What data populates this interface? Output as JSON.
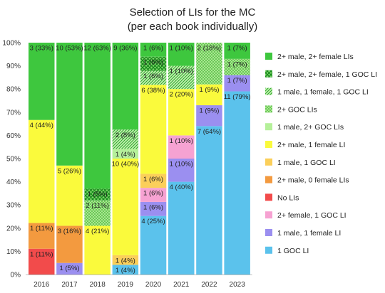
{
  "chart_data": {
    "type": "bar",
    "stacked": true,
    "title": "Selection of LIs for the MC",
    "subtitle": "(per each book individually)",
    "xlabel": "",
    "ylabel": "",
    "ylim": [
      0,
      100
    ],
    "yticks": [
      "0%",
      "10%",
      "20%",
      "30%",
      "40%",
      "50%",
      "60%",
      "70%",
      "80%",
      "90%",
      "100%"
    ],
    "grid": false,
    "legend_position": "right",
    "categories": [
      "2016",
      "2017",
      "2018",
      "2019",
      "2020",
      "2021",
      "2022",
      "2023"
    ],
    "series": [
      {
        "name": "1 GOC LI",
        "color": "#5bc2ec",
        "pattern": "solid",
        "values": [
          0,
          0,
          0,
          4,
          25,
          40,
          64,
          79
        ],
        "labels": [
          "",
          "",
          "",
          "1 (4%)",
          "4 (25%)",
          "4 (40%)",
          "7 (64%)",
          "11 (79%)"
        ]
      },
      {
        "name": "1 male, 1 female LI",
        "color": "#9b8ff0",
        "pattern": "solid",
        "values": [
          0,
          5,
          0,
          0,
          6,
          10,
          9,
          7
        ],
        "labels": [
          "",
          "1 (5%)",
          "",
          "",
          "1 (6%)",
          "1 (10%)",
          "1 (9%)",
          "1 (7%)"
        ]
      },
      {
        "name": "2+ female, 1 GOC LI",
        "color": "#f6a2d2",
        "pattern": "solid",
        "values": [
          0,
          0,
          0,
          0,
          6,
          10,
          0,
          0
        ],
        "labels": [
          "",
          "",
          "",
          "",
          "1 (6%)",
          "1 (10%)",
          "",
          ""
        ]
      },
      {
        "name": "No LIs",
        "color": "#f24b4b",
        "pattern": "solid",
        "values": [
          11,
          0,
          0,
          0,
          0,
          0,
          0,
          0
        ],
        "labels": [
          "1 (11%)",
          "",
          "",
          "",
          "",
          "",
          "",
          ""
        ]
      },
      {
        "name": "2+ male, 0 female LIs",
        "color": "#f39a3f",
        "pattern": "solid",
        "values": [
          11,
          16,
          0,
          0,
          0,
          0,
          0,
          0
        ],
        "labels": [
          "1 (11%)",
          "3 (16%)",
          "",
          "",
          "",
          "",
          "",
          ""
        ]
      },
      {
        "name": "1 male, 1 GOC LI",
        "color": "#fbcf5a",
        "pattern": "solid",
        "values": [
          0,
          0,
          0,
          4,
          6,
          0,
          0,
          0
        ],
        "labels": [
          "",
          "",
          "",
          "1 (4%)",
          "1 (6%)",
          "",
          "",
          ""
        ]
      },
      {
        "name": "2+ male, 1 female LI",
        "color": "#fafa3c",
        "pattern": "solid",
        "values": [
          44,
          26,
          21,
          40,
          38,
          20,
          9,
          0
        ],
        "labels": [
          "4 (44%)",
          "5 (26%)",
          "4 (21%)",
          "10 (40%)",
          "6 (38%)",
          "2 (20%)",
          "1 (9%)",
          ""
        ]
      },
      {
        "name": "1 male, 2+ GOC LIs",
        "color": "#b5f09a",
        "pattern": "solid",
        "values": [
          0,
          0,
          0,
          4,
          0,
          0,
          0,
          0
        ],
        "labels": [
          "",
          "",
          "",
          "1 (4%)",
          "",
          "",
          "",
          ""
        ]
      },
      {
        "name": "2+ GOC LIs",
        "color": "#6cd44e",
        "pattern": "dots",
        "values": [
          0,
          0,
          11,
          0,
          0,
          0,
          18,
          7
        ],
        "labels": [
          "",
          "",
          "2 (11%)",
          "",
          "",
          "",
          "2 (18%)",
          "1 (7%)"
        ]
      },
      {
        "name": "1 male, 1 female, 1 GOC LI",
        "color": "#6cd44e",
        "pattern": "diag",
        "values": [
          0,
          0,
          0,
          8,
          6,
          10,
          0,
          0
        ],
        "labels": [
          "",
          "",
          "",
          "2 (8%)",
          "1 (6%)",
          "1 (10%)",
          "",
          ""
        ]
      },
      {
        "name": "2+ male, 2+ female, 1 GOC LI",
        "color": "#2eb82e",
        "pattern": "cross",
        "values": [
          0,
          0,
          5,
          0,
          6,
          0,
          0,
          0
        ],
        "labels": [
          "",
          "",
          "1 (5%)",
          "",
          "1 (6%)",
          "",
          "",
          ""
        ]
      },
      {
        "name": "2+ male, 2+ female LIs",
        "color": "#3ec73e",
        "pattern": "solid",
        "values": [
          33,
          53,
          63,
          36,
          6,
          10,
          0,
          7
        ],
        "labels": [
          "3 (33%)",
          "10 (53%)",
          "12 (63%)",
          "9 (36%)",
          "1 (6%)",
          "1 (10%)",
          "",
          "1 (7%)"
        ]
      }
    ],
    "legend_order": [
      "2+ male, 2+ female LIs",
      "2+ male, 2+ female, 1 GOC LI",
      "1 male, 1 female, 1 GOC LI",
      "2+ GOC LIs",
      "1 male, 2+ GOC LIs",
      "2+ male, 1 female LI",
      "1 male, 1 GOC LI",
      "2+ male, 0 female LIs",
      "No LIs",
      "2+ female, 1 GOC LI",
      "1 male, 1 female LI",
      "1 GOC LI"
    ]
  }
}
